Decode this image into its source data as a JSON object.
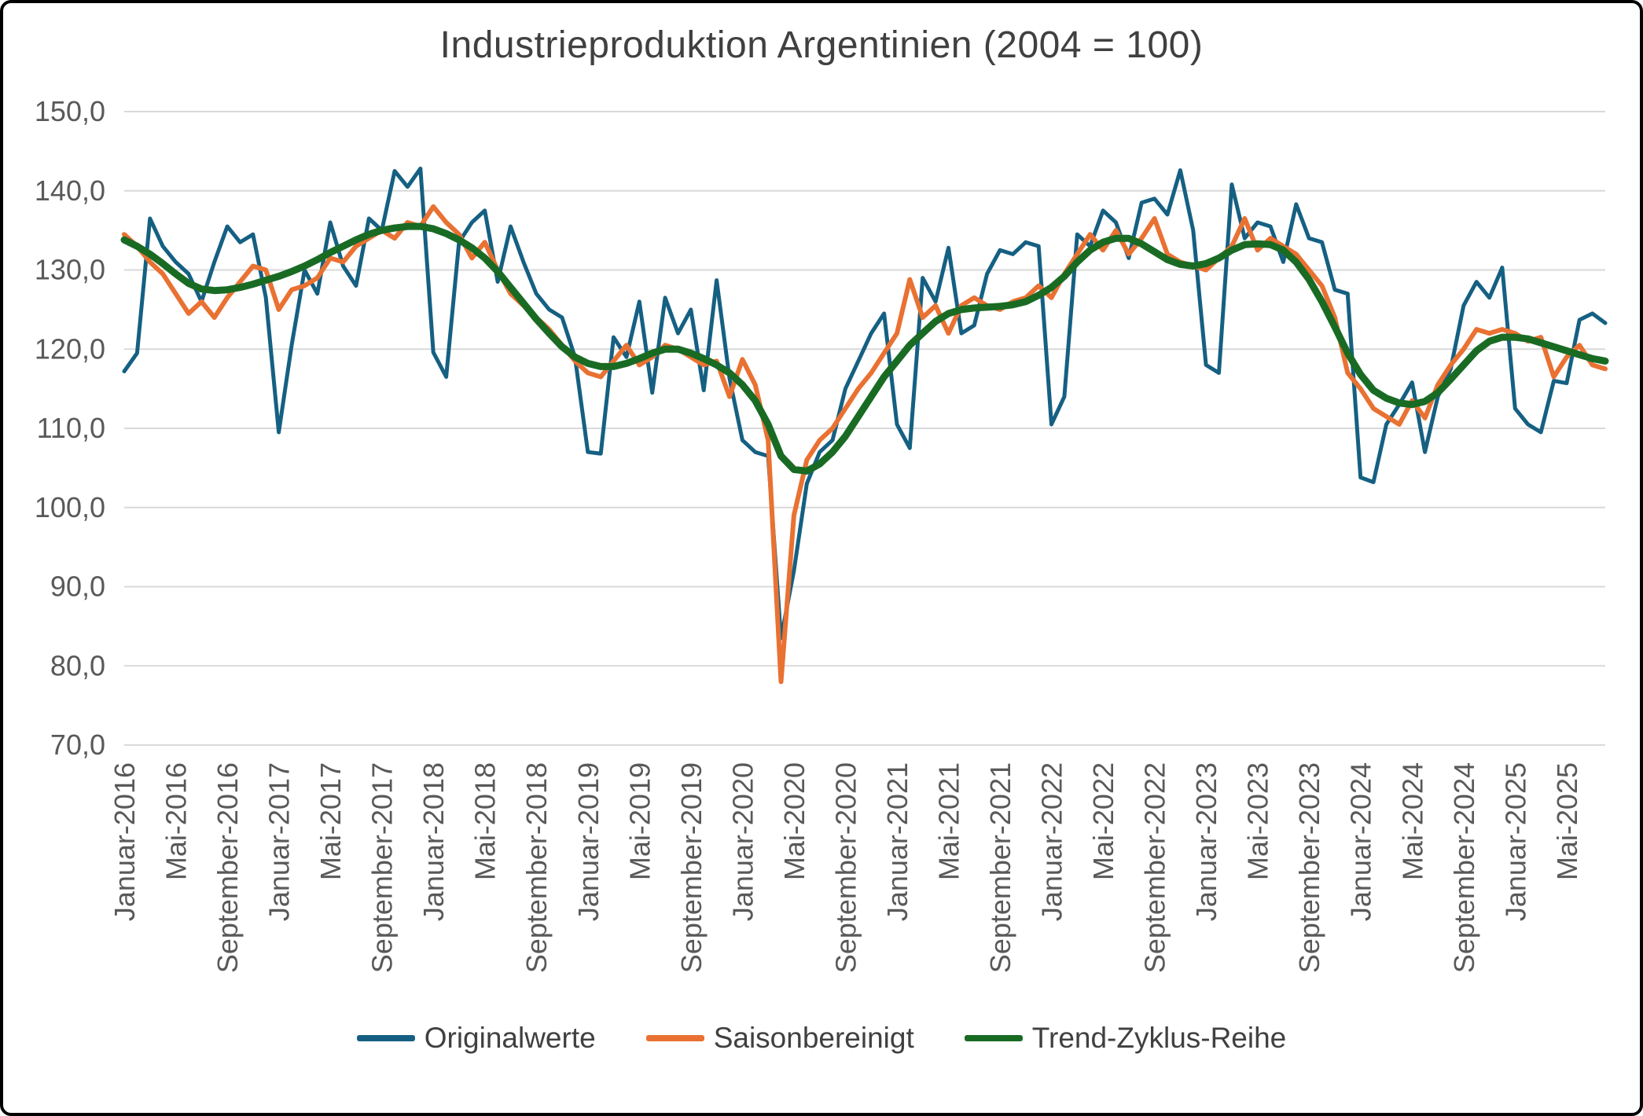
{
  "chart_data": {
    "type": "line",
    "title": "Industrieproduktion Argentinien (2004 = 100)",
    "xlabel": "",
    "ylabel": "",
    "ylim": [
      70,
      150
    ],
    "y_ticks": [
      "70,0",
      "80,0",
      "90,0",
      "100,0",
      "110,0",
      "120,0",
      "130,0",
      "140,0",
      "150,0"
    ],
    "x_tick_every": 4,
    "grid": true,
    "legend_position": "bottom",
    "grid_color": "#d9d9d9",
    "tick_label_color": "#595959",
    "title_color": "#404040",
    "categories": [
      "Januar-2016",
      "Februar-2016",
      "März-2016",
      "April-2016",
      "Mai-2016",
      "Juni-2016",
      "Juli-2016",
      "August-2016",
      "September-2016",
      "Oktober-2016",
      "November-2016",
      "Dezember-2016",
      "Januar-2017",
      "Februar-2017",
      "März-2017",
      "April-2017",
      "Mai-2017",
      "Juni-2017",
      "Juli-2017",
      "August-2017",
      "September-2017",
      "Oktober-2017",
      "November-2017",
      "Dezember-2017",
      "Januar-2018",
      "Februar-2018",
      "März-2018",
      "April-2018",
      "Mai-2018",
      "Juni-2018",
      "Juli-2018",
      "August-2018",
      "September-2018",
      "Oktober-2018",
      "November-2018",
      "Dezember-2018",
      "Januar-2019",
      "Februar-2019",
      "März-2019",
      "April-2019",
      "Mai-2019",
      "Juni-2019",
      "Juli-2019",
      "August-2019",
      "September-2019",
      "Oktober-2019",
      "November-2019",
      "Dezember-2019",
      "Januar-2020",
      "Februar-2020",
      "März-2020",
      "April-2020",
      "Mai-2020",
      "Juni-2020",
      "Juli-2020",
      "August-2020",
      "September-2020",
      "Oktober-2020",
      "November-2020",
      "Dezember-2020",
      "Januar-2021",
      "Februar-2021",
      "März-2021",
      "April-2021",
      "Mai-2021",
      "Juni-2021",
      "Juli-2021",
      "August-2021",
      "September-2021",
      "Oktober-2021",
      "November-2021",
      "Dezember-2021",
      "Januar-2022",
      "Februar-2022",
      "März-2022",
      "April-2022",
      "Mai-2022",
      "Juni-2022",
      "Juli-2022",
      "August-2022",
      "September-2022",
      "Oktober-2022",
      "November-2022",
      "Dezember-2022",
      "Januar-2023",
      "Februar-2023",
      "März-2023",
      "April-2023",
      "Mai-2023",
      "Juni-2023",
      "Juli-2023",
      "August-2023",
      "September-2023",
      "Oktober-2023",
      "November-2023",
      "Dezember-2023",
      "Januar-2024",
      "Februar-2024",
      "März-2024",
      "April-2024",
      "Mai-2024",
      "Juni-2024",
      "Juli-2024",
      "August-2024",
      "September-2024",
      "Oktober-2024",
      "November-2024",
      "Dezember-2024",
      "Januar-2025",
      "Februar-2025",
      "März-2025",
      "April-2025",
      "Mai-2025",
      "Juni-2025",
      "Juli-2025",
      "August-2025"
    ],
    "series": [
      {
        "name": "Originalwerte",
        "key": "originalwerte",
        "color": "#156082",
        "width": 5,
        "values": [
          117.2,
          119.5,
          136.5,
          133,
          131,
          129.5,
          126,
          131,
          135.5,
          133.5,
          134.5,
          126.5,
          109.5,
          120.5,
          130,
          127,
          136,
          130.5,
          128,
          136.5,
          135,
          142.5,
          140.5,
          142.8,
          119.6,
          116.5,
          133.5,
          136,
          137.5,
          128.5,
          135.5,
          131,
          127,
          125,
          124,
          119,
          107,
          106.8,
          121.5,
          119,
          126,
          114.5,
          126.5,
          122,
          125,
          114.8,
          128.7,
          116.3,
          108.5,
          107,
          106.5,
          83.5,
          92,
          103,
          107,
          108.5,
          115,
          118.5,
          122,
          124.5,
          110.5,
          107.5,
          129,
          126,
          132.8,
          122,
          123,
          129.5,
          132.5,
          132,
          133.5,
          133,
          110.5,
          114,
          134.5,
          133,
          137.5,
          136,
          131.5,
          138.5,
          139,
          137,
          142.6,
          135,
          118,
          117,
          140.8,
          134,
          136,
          135.5,
          131,
          138.3,
          134,
          133.5,
          127.5,
          127,
          103.8,
          103.2,
          110.5,
          113,
          115.8,
          107,
          114,
          117.5,
          125.5,
          128.5,
          126.5,
          130.3,
          112.5,
          110.5,
          109.5,
          116,
          115.7,
          123.7,
          124.5,
          123.3
        ]
      },
      {
        "name": "Saisonbereinigt",
        "key": "saisonbereinigt",
        "color": "#e97132",
        "width": 6,
        "values": [
          134.5,
          133,
          131,
          129.5,
          127,
          124.5,
          126,
          124,
          126.5,
          128.5,
          130.5,
          130,
          125,
          127.5,
          128,
          129,
          131.5,
          131,
          133,
          134,
          135,
          134,
          136,
          135.5,
          138,
          136,
          134.5,
          131.5,
          133.5,
          130,
          127,
          125.5,
          124,
          122.5,
          120.5,
          118.5,
          117,
          116.5,
          118.5,
          120.5,
          118,
          119,
          120.5,
          120,
          119,
          118,
          118.5,
          114,
          118.7,
          115.5,
          108.5,
          78,
          99,
          106,
          108.5,
          110,
          112.5,
          115,
          117,
          119.5,
          122,
          128.8,
          124,
          125.5,
          122,
          125.5,
          126.5,
          125.5,
          125,
          126,
          126.5,
          128,
          126.5,
          129.5,
          132,
          134.5,
          132.5,
          135,
          132,
          134,
          136.5,
          132,
          131,
          130.5,
          130,
          131.5,
          133,
          136.5,
          132.5,
          134,
          133,
          132,
          130,
          128,
          124,
          117,
          115,
          112.5,
          111.5,
          110.5,
          113.5,
          111.3,
          115.5,
          118,
          120,
          122.5,
          122,
          122.5,
          122,
          121,
          121.5,
          116.5,
          119,
          120.5,
          118,
          117.5
        ]
      },
      {
        "name": "Trend-Zyklus-Reihe",
        "key": "trend-zyklus-reihe",
        "color": "#196b24",
        "width": 9,
        "values": [
          133.8,
          133,
          132,
          130.8,
          129.5,
          128.3,
          127.6,
          127.4,
          127.5,
          127.8,
          128.2,
          128.7,
          129.2,
          129.8,
          130.5,
          131.3,
          132.2,
          133,
          133.8,
          134.5,
          135,
          135.3,
          135.5,
          135.5,
          135.2,
          134.6,
          133.8,
          132.8,
          131.5,
          129.8,
          127.8,
          125.8,
          123.8,
          122,
          120.3,
          119,
          118.2,
          117.8,
          117.8,
          118.2,
          118.8,
          119.5,
          120,
          120,
          119.5,
          118.8,
          118,
          117,
          115.5,
          113.5,
          110.5,
          106.5,
          104.8,
          104.6,
          105.5,
          107,
          109,
          111.5,
          114,
          116.5,
          118.5,
          120.5,
          122,
          123.5,
          124.5,
          125,
          125.2,
          125.3,
          125.4,
          125.6,
          126,
          126.8,
          127.8,
          129.2,
          131,
          132.5,
          133.5,
          134,
          134,
          133.3,
          132.3,
          131.3,
          130.7,
          130.5,
          130.8,
          131.5,
          132.5,
          133.2,
          133.3,
          133.2,
          132.5,
          131,
          128.8,
          126,
          122.8,
          119.5,
          116.8,
          114.8,
          113.8,
          113.2,
          113,
          113.4,
          114.5,
          116.2,
          118,
          119.8,
          121,
          121.5,
          121.5,
          121.3,
          120.8,
          120.3,
          119.8,
          119.3,
          118.8,
          118.5
        ]
      }
    ]
  }
}
